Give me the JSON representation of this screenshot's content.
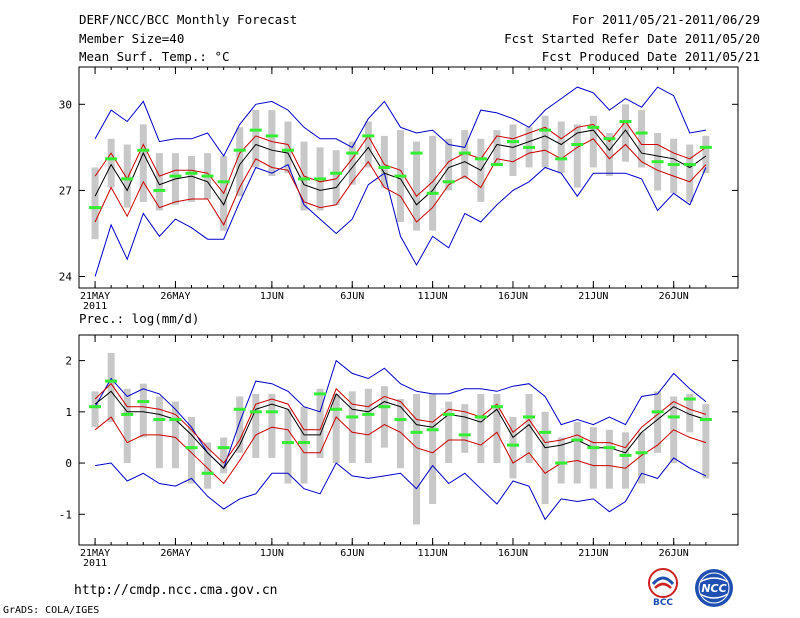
{
  "header": {
    "title": "DERF/NCC/BCC Monthly Forecast",
    "member_size": "Member Size=40",
    "variable": "Mean Surf. Temp.: °C",
    "period": "For 2011/05/21-2011/06/29",
    "refer_date": "Fcst Started Refer Date 2011/05/20",
    "produced_date": "Fcst Produced Date 2011/05/21"
  },
  "footer": {
    "url": "http://cmdp.ncc.cma.gov.cn",
    "credit": "GrADS: COLA/IGES",
    "logo_bcc_text": "BCC",
    "logo_ncc_text": "NCC"
  },
  "colors": {
    "envelope": "#0000cc",
    "mean": "#000000",
    "lower": "#cc0000",
    "bar": "#c8c8c8",
    "median": "#33ee33",
    "frame": "#000000"
  },
  "chart_data": [
    {
      "type": "line",
      "title": "Mean Surf. Temp.: °C",
      "x_ticks": [
        "21MAY",
        "26MAY",
        "1JUN",
        "6JUN",
        "11JUN",
        "16JUN",
        "21JUN",
        "26JUN"
      ],
      "x_tick_days": [
        0,
        5,
        11,
        16,
        21,
        26,
        31,
        36
      ],
      "x_year_label": "2011",
      "xlim": [
        -1,
        40
      ],
      "ylim": [
        23.6,
        31.3
      ],
      "y_ticks": [
        24,
        27,
        30
      ],
      "days": 39,
      "series": [
        {
          "name": "max",
          "role": "envelope",
          "values": [
            28.8,
            29.8,
            29.4,
            30.1,
            28.7,
            28.8,
            28.8,
            29.0,
            28.2,
            29.3,
            30.0,
            30.1,
            29.8,
            29.2,
            28.8,
            28.8,
            28.5,
            29.5,
            30.1,
            29.2,
            29.0,
            29.1,
            28.6,
            28.5,
            29.8,
            29.7,
            29.5,
            29.2,
            29.8,
            30.2,
            30.6,
            30.4,
            29.8,
            30.2,
            29.9,
            30.6,
            30.3,
            29.0,
            29.1
          ]
        },
        {
          "name": "min",
          "role": "envelope",
          "values": [
            24.0,
            25.8,
            24.6,
            26.2,
            25.4,
            26.0,
            25.7,
            25.3,
            25.3,
            26.6,
            27.8,
            27.6,
            27.9,
            26.5,
            26.0,
            25.5,
            26.0,
            27.2,
            27.6,
            25.4,
            24.4,
            25.4,
            25.0,
            26.2,
            25.9,
            26.5,
            27.0,
            27.3,
            27.8,
            27.6,
            26.8,
            27.6,
            27.6,
            27.6,
            27.4,
            26.3,
            26.9,
            26.5,
            27.8
          ]
        },
        {
          "name": "ensemble mean",
          "role": "mean",
          "values": [
            26.8,
            27.9,
            27.0,
            28.3,
            27.2,
            27.4,
            27.5,
            27.3,
            26.5,
            27.9,
            28.6,
            28.4,
            28.3,
            27.2,
            27.0,
            27.1,
            27.8,
            28.5,
            27.6,
            27.4,
            26.5,
            27.0,
            27.8,
            28.0,
            27.7,
            28.6,
            28.5,
            28.7,
            28.9,
            28.6,
            29.0,
            29.1,
            28.4,
            29.1,
            28.3,
            28.2,
            28.1,
            27.8,
            28.2
          ]
        },
        {
          "name": "lower band",
          "role": "lower",
          "values": [
            25.9,
            27.1,
            26.1,
            27.3,
            26.4,
            26.6,
            26.7,
            26.7,
            25.8,
            27.1,
            28.1,
            27.8,
            27.7,
            26.6,
            26.4,
            26.5,
            27.3,
            28.0,
            27.1,
            26.8,
            25.9,
            26.4,
            27.2,
            27.5,
            27.1,
            28.1,
            28.0,
            28.3,
            28.4,
            28.1,
            28.5,
            28.8,
            28.1,
            28.6,
            28.0,
            27.7,
            27.5,
            27.3,
            27.9
          ]
        },
        {
          "name": "upper band",
          "role": "lower",
          "values": [
            27.5,
            28.3,
            27.4,
            28.6,
            27.5,
            27.7,
            27.7,
            27.6,
            26.9,
            28.3,
            28.9,
            28.7,
            28.6,
            27.5,
            27.3,
            27.4,
            28.1,
            28.9,
            27.9,
            27.7,
            26.8,
            27.3,
            28.0,
            28.3,
            28.1,
            28.9,
            28.8,
            29.0,
            29.2,
            28.8,
            29.2,
            29.3,
            28.7,
            29.4,
            28.6,
            28.6,
            28.3,
            28.1,
            28.5
          ]
        }
      ],
      "median": [
        26.4,
        28.1,
        27.4,
        28.4,
        27.0,
        27.5,
        27.6,
        27.5,
        27.3,
        28.4,
        29.1,
        28.9,
        28.4,
        27.4,
        27.4,
        27.6,
        28.3,
        28.9,
        27.8,
        27.5,
        28.3,
        26.9,
        27.3,
        28.3,
        28.1,
        27.9,
        28.7,
        28.5,
        29.1,
        28.1,
        28.6,
        29.2,
        28.8,
        29.4,
        29.0,
        28.0,
        27.9,
        27.9,
        28.5
      ],
      "bar_low": [
        25.3,
        27.1,
        26.4,
        26.6,
        26.3,
        26.5,
        26.6,
        26.7,
        25.6,
        26.8,
        27.8,
        27.5,
        27.6,
        26.3,
        26.3,
        26.5,
        27.2,
        27.8,
        27.1,
        25.9,
        25.6,
        25.6,
        27.0,
        27.4,
        26.6,
        27.9,
        27.5,
        27.8,
        27.8,
        27.6,
        27.1,
        27.8,
        27.5,
        28.0,
        27.8,
        27.0,
        26.9,
        26.6,
        27.6
      ],
      "bar_high": [
        27.8,
        28.8,
        28.6,
        29.3,
        28.3,
        28.3,
        28.2,
        28.3,
        28.2,
        29.2,
        29.8,
        29.8,
        29.4,
        28.7,
        28.5,
        28.4,
        28.7,
        29.4,
        28.9,
        29.1,
        28.7,
        28.9,
        28.8,
        29.1,
        28.8,
        29.1,
        29.3,
        29.2,
        29.6,
        29.4,
        29.3,
        29.6,
        29.0,
        30.0,
        29.8,
        29.0,
        28.8,
        28.6,
        28.9
      ]
    },
    {
      "type": "line",
      "title": "Prec.: log(mm/d)",
      "x_ticks": [
        "21MAY",
        "26MAY",
        "1JUN",
        "6JUN",
        "11JUN",
        "16JUN",
        "21JUN",
        "26JUN"
      ],
      "x_tick_days": [
        0,
        5,
        11,
        16,
        21,
        26,
        31,
        36
      ],
      "x_year_label": "2011",
      "xlim": [
        -1,
        40
      ],
      "ylim": [
        -1.6,
        2.5
      ],
      "y_ticks": [
        -1,
        0,
        1,
        2
      ],
      "days": 39,
      "series": [
        {
          "name": "max",
          "role": "envelope",
          "values": [
            1.1,
            1.65,
            1.3,
            1.45,
            1.35,
            1.05,
            0.7,
            0.2,
            -0.1,
            0.8,
            1.6,
            1.55,
            1.4,
            1.1,
            1.0,
            2.0,
            1.75,
            1.65,
            1.85,
            1.55,
            1.4,
            1.35,
            1.35,
            1.45,
            1.45,
            1.4,
            1.5,
            1.55,
            1.3,
            0.75,
            0.85,
            0.75,
            0.9,
            0.75,
            1.3,
            1.35,
            1.75,
            1.45,
            1.2
          ]
        },
        {
          "name": "min",
          "role": "envelope",
          "values": [
            -0.05,
            0.0,
            -0.35,
            -0.2,
            -0.4,
            -0.45,
            -0.3,
            -0.65,
            -0.9,
            -0.7,
            -0.6,
            -0.2,
            -0.2,
            -0.5,
            -0.6,
            0.0,
            -0.25,
            -0.3,
            -0.25,
            -0.2,
            -0.5,
            -0.05,
            -0.4,
            -0.2,
            -0.5,
            -0.8,
            -0.35,
            -0.45,
            -1.1,
            -0.7,
            -0.75,
            -0.7,
            -0.95,
            -0.75,
            -0.2,
            -0.3,
            0.1,
            -0.1,
            -0.25
          ]
        },
        {
          "name": "ensemble mean",
          "role": "mean",
          "values": [
            1.15,
            1.4,
            1.0,
            1.0,
            0.95,
            0.85,
            0.55,
            0.2,
            -0.1,
            0.35,
            1.05,
            1.15,
            1.05,
            0.55,
            0.55,
            1.35,
            1.05,
            1.0,
            1.2,
            1.1,
            0.75,
            0.7,
            0.95,
            0.9,
            0.8,
            1.05,
            0.5,
            0.75,
            0.3,
            0.35,
            0.45,
            0.3,
            0.3,
            0.2,
            0.6,
            0.85,
            1.1,
            0.95,
            0.85
          ]
        },
        {
          "name": "lower band",
          "role": "lower",
          "values": [
            0.65,
            0.9,
            0.4,
            0.55,
            0.55,
            0.5,
            0.2,
            -0.1,
            -0.4,
            0.05,
            0.55,
            0.7,
            0.65,
            0.2,
            0.2,
            0.9,
            0.6,
            0.55,
            0.75,
            0.6,
            0.3,
            0.2,
            0.45,
            0.45,
            0.35,
            0.6,
            0.0,
            0.2,
            -0.2,
            0.0,
            0.05,
            -0.05,
            -0.05,
            -0.1,
            0.15,
            0.35,
            0.65,
            0.5,
            0.4
          ]
        },
        {
          "name": "upper band",
          "role": "lower",
          "values": [
            1.25,
            1.55,
            1.1,
            1.1,
            1.05,
            0.95,
            0.65,
            0.3,
            0.0,
            0.45,
            1.15,
            1.25,
            1.15,
            0.65,
            0.65,
            1.45,
            1.15,
            1.1,
            1.3,
            1.2,
            0.85,
            0.8,
            1.05,
            1.0,
            0.9,
            1.15,
            0.6,
            0.85,
            0.4,
            0.45,
            0.55,
            0.4,
            0.4,
            0.3,
            0.7,
            0.95,
            1.2,
            1.05,
            0.95
          ]
        }
      ],
      "median": [
        1.1,
        1.6,
        0.95,
        1.2,
        0.85,
        0.85,
        0.3,
        -0.2,
        0.3,
        1.05,
        1.0,
        1.0,
        0.4,
        0.4,
        1.35,
        1.05,
        0.9,
        0.95,
        1.1,
        0.85,
        0.6,
        0.65,
        0.95,
        0.55,
        0.9,
        1.1,
        0.35,
        0.9,
        0.6,
        0.0,
        0.45,
        0.3,
        0.3,
        0.15,
        0.2,
        1.0,
        0.9,
        1.25,
        0.85
      ],
      "bar_low": [
        0.7,
        0.8,
        0.0,
        0.5,
        -0.1,
        -0.1,
        -0.4,
        -0.5,
        -0.2,
        0.2,
        0.1,
        0.1,
        -0.4,
        -0.4,
        0.1,
        0.0,
        0.0,
        0.0,
        0.3,
        -0.1,
        -1.2,
        -0.8,
        0.0,
        0.2,
        0.0,
        0.0,
        -0.3,
        0.0,
        -0.8,
        -0.4,
        -0.4,
        -0.5,
        -0.5,
        -0.5,
        -0.4,
        0.2,
        0.0,
        0.6,
        -0.3
      ],
      "bar_high": [
        1.4,
        2.15,
        1.45,
        1.55,
        1.3,
        1.2,
        0.9,
        0.4,
        0.5,
        1.3,
        1.35,
        1.35,
        1.05,
        1.1,
        1.45,
        1.35,
        1.4,
        1.45,
        1.5,
        1.25,
        1.35,
        1.35,
        1.2,
        1.15,
        1.35,
        1.35,
        0.9,
        1.35,
        1.0,
        0.5,
        0.8,
        0.7,
        0.65,
        0.6,
        0.6,
        1.4,
        1.3,
        1.35,
        1.15
      ]
    }
  ]
}
